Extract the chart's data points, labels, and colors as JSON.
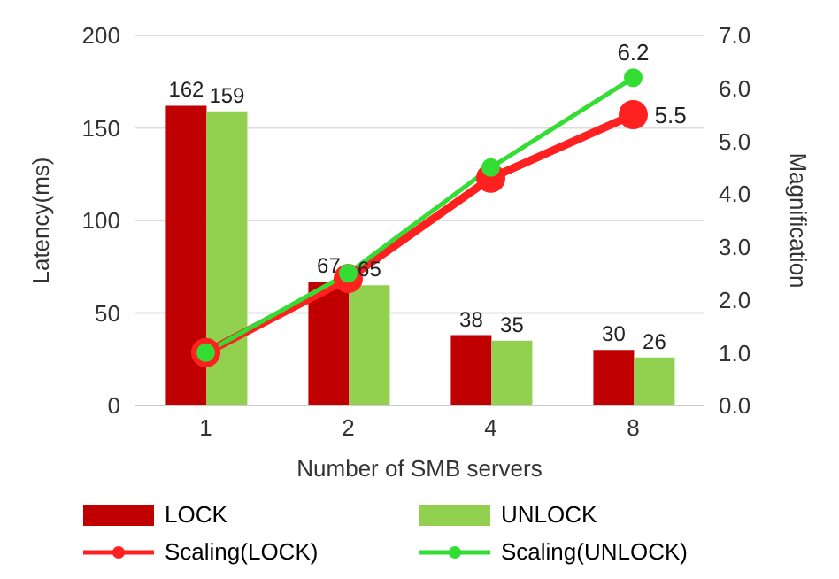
{
  "chart_data": {
    "type": "bar",
    "xlabel": "Number of SMB servers",
    "ylabel": "Latency(ms)",
    "y2label": "Magnification",
    "categories": [
      "1",
      "2",
      "4",
      "8"
    ],
    "series": [
      {
        "name": "LOCK",
        "color": "#c00000",
        "values": [
          162,
          67,
          38,
          30
        ],
        "data_labels": true
      },
      {
        "name": "UNLOCK",
        "color": "#92d050",
        "values": [
          159,
          65,
          35,
          26
        ],
        "data_labels": true
      },
      {
        "name": "Scaling(LOCK)",
        "type": "line",
        "axis": "y2",
        "color": "#ff2020",
        "values": [
          1.0,
          2.4,
          4.3,
          5.5
        ],
        "value_labels": [
          null,
          null,
          null,
          "5.5"
        ],
        "marker": "circle"
      },
      {
        "name": "Scaling(UNLOCK)",
        "type": "line",
        "axis": "y2",
        "color": "#33dd33",
        "values": [
          1.0,
          2.5,
          4.5,
          6.2
        ],
        "value_labels": [
          null,
          null,
          null,
          "6.2"
        ],
        "marker": "circle"
      }
    ],
    "ylim": [
      0,
      200
    ],
    "yticks": [
      0,
      50,
      100,
      150,
      200
    ],
    "y2lim": [
      0,
      7
    ],
    "y2ticks": [
      {
        "value": 0,
        "label": "0.0"
      },
      {
        "value": 1,
        "label": "1.0"
      },
      {
        "value": 2,
        "label": "2.0"
      },
      {
        "value": 3,
        "label": "3.0"
      },
      {
        "value": 4,
        "label": "4.0"
      },
      {
        "value": 5,
        "label": "5.0"
      },
      {
        "value": 6,
        "label": "6.0"
      },
      {
        "value": 7,
        "label": "7.0"
      }
    ],
    "grid": "y",
    "legend": "bottom"
  }
}
